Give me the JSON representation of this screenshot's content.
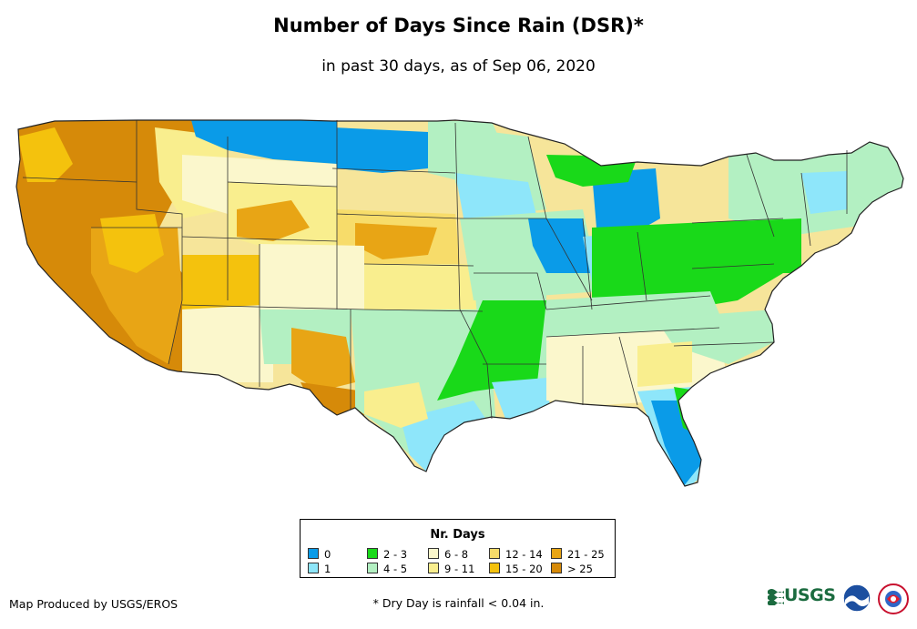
{
  "header": {
    "title": "Number of Days Since Rain (DSR)*",
    "subtitle": "in past 30 days, as of Sep 06, 2020"
  },
  "legend": {
    "title": "Nr. Days",
    "items": [
      {
        "label": "0",
        "color": "#0a9be8"
      },
      {
        "label": "1",
        "color": "#8ee6fa"
      },
      {
        "label": "2 - 3",
        "color": "#19d919"
      },
      {
        "label": "4 - 5",
        "color": "#b3f0c2"
      },
      {
        "label": "6 - 8",
        "color": "#fbf7cc"
      },
      {
        "label": "9 - 11",
        "color": "#f9ee8e"
      },
      {
        "label": "12 - 14",
        "color": "#f7dc6a"
      },
      {
        "label": "15 - 20",
        "color": "#f4c20d"
      },
      {
        "label": "21 - 25",
        "color": "#e8a515"
      },
      {
        "label": "> 25",
        "color": "#d68a09"
      }
    ]
  },
  "footer": {
    "credit": "Map Produced by USGS/EROS",
    "footnote": "* Dry Day is rainfall < 0.04 in.",
    "usgs_text": "USGS"
  },
  "logos": {
    "usgs": "usgs-logo",
    "noaa": "noaa-logo",
    "nws": "nws-logo"
  }
}
